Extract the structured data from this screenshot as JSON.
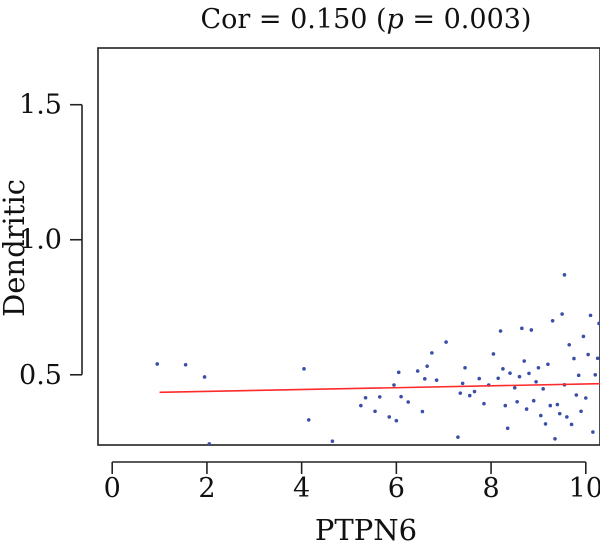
{
  "chart_data": {
    "type": "scatter",
    "title": "Cor = 0.150 (p = 0.003)",
    "title_parts": {
      "prefix": "Cor = 0.150 (",
      "p_symbol": "p",
      "suffix": " = 0.003)"
    },
    "xlabel": "PTPN6",
    "ylabel": "Dendritic",
    "xlim": [
      -0.3,
      10.3
    ],
    "ylim": [
      0.24,
      1.71
    ],
    "xticks": [
      0,
      2,
      4,
      6,
      8,
      10
    ],
    "xtick_labels": [
      "0",
      "2",
      "4",
      "6",
      "8",
      "10"
    ],
    "yticks": [
      0.5,
      1.0,
      1.5
    ],
    "ytick_labels": [
      "0.5",
      "1.0",
      "1.5"
    ],
    "grid": false,
    "colors": {
      "points": "#3a4fa8",
      "fit_line": "#ff2a2a",
      "axis": "#222222"
    },
    "fit_line": {
      "x": [
        1.0,
        10.3
      ],
      "y": [
        0.435,
        0.467
      ]
    },
    "points": [
      {
        "x": 0.95,
        "y": 0.54
      },
      {
        "x": 1.55,
        "y": 0.537
      },
      {
        "x": 1.95,
        "y": 0.492
      },
      {
        "x": 2.05,
        "y": 0.244
      },
      {
        "x": 4.05,
        "y": 0.522
      },
      {
        "x": 4.15,
        "y": 0.333
      },
      {
        "x": 4.65,
        "y": 0.254
      },
      {
        "x": 5.25,
        "y": 0.386
      },
      {
        "x": 5.35,
        "y": 0.415
      },
      {
        "x": 5.55,
        "y": 0.365
      },
      {
        "x": 5.65,
        "y": 0.418
      },
      {
        "x": 5.85,
        "y": 0.344
      },
      {
        "x": 5.95,
        "y": 0.462
      },
      {
        "x": 6.0,
        "y": 0.33
      },
      {
        "x": 6.05,
        "y": 0.509
      },
      {
        "x": 6.1,
        "y": 0.419
      },
      {
        "x": 6.25,
        "y": 0.399
      },
      {
        "x": 6.45,
        "y": 0.514
      },
      {
        "x": 6.55,
        "y": 0.364
      },
      {
        "x": 6.6,
        "y": 0.485
      },
      {
        "x": 6.65,
        "y": 0.532
      },
      {
        "x": 6.75,
        "y": 0.581
      },
      {
        "x": 6.85,
        "y": 0.48
      },
      {
        "x": 7.05,
        "y": 0.621
      },
      {
        "x": 7.3,
        "y": 0.269
      },
      {
        "x": 7.35,
        "y": 0.432
      },
      {
        "x": 7.4,
        "y": 0.468
      },
      {
        "x": 7.45,
        "y": 0.526
      },
      {
        "x": 7.55,
        "y": 0.423
      },
      {
        "x": 7.65,
        "y": 0.438
      },
      {
        "x": 7.75,
        "y": 0.486
      },
      {
        "x": 7.85,
        "y": 0.393
      },
      {
        "x": 7.95,
        "y": 0.462
      },
      {
        "x": 8.05,
        "y": 0.577
      },
      {
        "x": 8.15,
        "y": 0.487
      },
      {
        "x": 8.2,
        "y": 0.662
      },
      {
        "x": 8.25,
        "y": 0.522
      },
      {
        "x": 8.3,
        "y": 0.386
      },
      {
        "x": 8.35,
        "y": 0.302
      },
      {
        "x": 8.4,
        "y": 0.506
      },
      {
        "x": 8.5,
        "y": 0.452
      },
      {
        "x": 8.55,
        "y": 0.4
      },
      {
        "x": 8.6,
        "y": 0.493
      },
      {
        "x": 8.65,
        "y": 0.672
      },
      {
        "x": 8.7,
        "y": 0.551
      },
      {
        "x": 8.75,
        "y": 0.373
      },
      {
        "x": 8.8,
        "y": 0.505
      },
      {
        "x": 8.85,
        "y": 0.666
      },
      {
        "x": 8.9,
        "y": 0.404
      },
      {
        "x": 8.95,
        "y": 0.474
      },
      {
        "x": 9.0,
        "y": 0.526
      },
      {
        "x": 9.05,
        "y": 0.349
      },
      {
        "x": 9.1,
        "y": 0.448
      },
      {
        "x": 9.15,
        "y": 0.318
      },
      {
        "x": 9.2,
        "y": 0.539
      },
      {
        "x": 9.25,
        "y": 0.386
      },
      {
        "x": 9.3,
        "y": 0.7
      },
      {
        "x": 9.35,
        "y": 0.263
      },
      {
        "x": 9.4,
        "y": 0.39
      },
      {
        "x": 9.45,
        "y": 0.356
      },
      {
        "x": 9.5,
        "y": 0.725
      },
      {
        "x": 9.55,
        "y": 0.87
      },
      {
        "x": 9.55,
        "y": 0.463
      },
      {
        "x": 9.6,
        "y": 0.344
      },
      {
        "x": 9.65,
        "y": 0.611
      },
      {
        "x": 9.7,
        "y": 0.316
      },
      {
        "x": 9.75,
        "y": 0.56
      },
      {
        "x": 9.8,
        "y": 0.425
      },
      {
        "x": 9.85,
        "y": 0.498
      },
      {
        "x": 9.9,
        "y": 0.365
      },
      {
        "x": 9.95,
        "y": 0.642
      },
      {
        "x": 10.0,
        "y": 0.414
      },
      {
        "x": 10.05,
        "y": 0.575
      },
      {
        "x": 10.1,
        "y": 0.72
      },
      {
        "x": 10.15,
        "y": 0.288
      },
      {
        "x": 10.2,
        "y": 0.5
      },
      {
        "x": 10.25,
        "y": 0.561
      },
      {
        "x": 10.28,
        "y": 0.69
      }
    ]
  }
}
